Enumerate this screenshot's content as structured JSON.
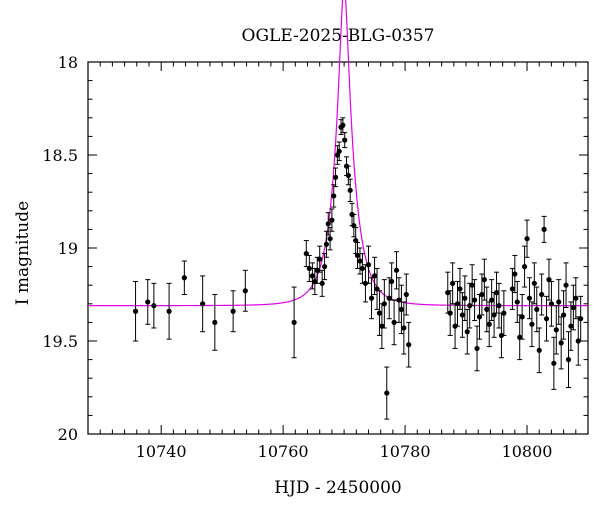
{
  "chart_data": {
    "type": "scatter",
    "title": "OGLE-2025-BLG-0357",
    "xlabel": "HJD - 2450000",
    "ylabel": "I magnitude",
    "xlim": [
      10728,
      10810
    ],
    "ylim": [
      18,
      20
    ],
    "y_inverted": true,
    "x_ticks": [
      10740,
      10760,
      10780,
      10800
    ],
    "y_ticks": [
      18,
      18.5,
      19,
      19.5,
      20
    ],
    "grid": false,
    "legend": "none",
    "colors": {
      "points": "#000000",
      "model": "#e600e6"
    },
    "model": {
      "type": "point-lens microlensing",
      "t0": 10770.0,
      "tE": 3.2,
      "u0": 0.21,
      "baseline": 19.31,
      "blend_fraction": 1.0
    },
    "points": [
      {
        "x": 10735.8,
        "y": 19.34,
        "err": 0.16
      },
      {
        "x": 10737.8,
        "y": 19.29,
        "err": 0.12
      },
      {
        "x": 10738.8,
        "y": 19.31,
        "err": 0.12
      },
      {
        "x": 10741.3,
        "y": 19.34,
        "err": 0.15
      },
      {
        "x": 10743.8,
        "y": 19.16,
        "err": 0.09
      },
      {
        "x": 10746.8,
        "y": 19.3,
        "err": 0.15
      },
      {
        "x": 10748.8,
        "y": 19.4,
        "err": 0.15
      },
      {
        "x": 10751.8,
        "y": 19.34,
        "err": 0.11
      },
      {
        "x": 10753.8,
        "y": 19.23,
        "err": 0.11
      },
      {
        "x": 10761.8,
        "y": 19.4,
        "err": 0.19
      },
      {
        "x": 10763.8,
        "y": 19.03,
        "err": 0.07
      },
      {
        "x": 10764.3,
        "y": 19.11,
        "err": 0.07
      },
      {
        "x": 10764.8,
        "y": 19.15,
        "err": 0.07
      },
      {
        "x": 10765.2,
        "y": 19.18,
        "err": 0.07
      },
      {
        "x": 10765.6,
        "y": 19.12,
        "err": 0.07
      },
      {
        "x": 10766.0,
        "y": 19.06,
        "err": 0.07
      },
      {
        "x": 10766.4,
        "y": 19.19,
        "err": 0.07
      },
      {
        "x": 10766.8,
        "y": 19.1,
        "err": 0.07
      },
      {
        "x": 10767.1,
        "y": 18.98,
        "err": 0.07
      },
      {
        "x": 10767.4,
        "y": 18.87,
        "err": 0.06
      },
      {
        "x": 10767.7,
        "y": 18.95,
        "err": 0.06
      },
      {
        "x": 10768.0,
        "y": 18.85,
        "err": 0.06
      },
      {
        "x": 10768.3,
        "y": 18.72,
        "err": 0.06
      },
      {
        "x": 10768.6,
        "y": 18.62,
        "err": 0.05
      },
      {
        "x": 10768.9,
        "y": 18.5,
        "err": 0.05
      },
      {
        "x": 10769.2,
        "y": 18.48,
        "err": 0.05
      },
      {
        "x": 10769.5,
        "y": 18.35,
        "err": 0.04
      },
      {
        "x": 10769.8,
        "y": 18.34,
        "err": 0.04
      },
      {
        "x": 10770.1,
        "y": 18.42,
        "err": 0.04
      },
      {
        "x": 10770.4,
        "y": 18.56,
        "err": 0.05
      },
      {
        "x": 10770.7,
        "y": 18.61,
        "err": 0.05
      },
      {
        "x": 10771.0,
        "y": 18.69,
        "err": 0.06
      },
      {
        "x": 10771.3,
        "y": 18.82,
        "err": 0.06
      },
      {
        "x": 10771.6,
        "y": 18.88,
        "err": 0.06
      },
      {
        "x": 10771.9,
        "y": 18.96,
        "err": 0.07
      },
      {
        "x": 10772.2,
        "y": 19.04,
        "err": 0.07
      },
      {
        "x": 10772.6,
        "y": 19.07,
        "err": 0.07
      },
      {
        "x": 10773.0,
        "y": 19.11,
        "err": 0.08
      },
      {
        "x": 10773.5,
        "y": 19.19,
        "err": 0.1
      },
      {
        "x": 10774.0,
        "y": 19.09,
        "err": 0.1
      },
      {
        "x": 10774.5,
        "y": 19.27,
        "err": 0.11
      },
      {
        "x": 10775.0,
        "y": 19.15,
        "err": 0.1
      },
      {
        "x": 10775.4,
        "y": 19.22,
        "err": 0.11
      },
      {
        "x": 10775.8,
        "y": 19.35,
        "err": 0.12
      },
      {
        "x": 10776.2,
        "y": 19.42,
        "err": 0.12
      },
      {
        "x": 10776.6,
        "y": 19.3,
        "err": 0.13
      },
      {
        "x": 10777.0,
        "y": 19.78,
        "err": 0.14
      },
      {
        "x": 10777.4,
        "y": 19.27,
        "err": 0.11
      },
      {
        "x": 10777.8,
        "y": 19.18,
        "err": 0.1
      },
      {
        "x": 10778.2,
        "y": 19.4,
        "err": 0.12
      },
      {
        "x": 10778.6,
        "y": 19.12,
        "err": 0.1
      },
      {
        "x": 10779.0,
        "y": 19.28,
        "err": 0.12
      },
      {
        "x": 10779.4,
        "y": 19.33,
        "err": 0.13
      },
      {
        "x": 10779.8,
        "y": 19.43,
        "err": 0.14
      },
      {
        "x": 10780.2,
        "y": 19.25,
        "err": 0.11
      },
      {
        "x": 10780.6,
        "y": 19.52,
        "err": 0.12
      },
      {
        "x": 10787.0,
        "y": 19.24,
        "err": 0.11
      },
      {
        "x": 10787.4,
        "y": 19.35,
        "err": 0.12
      },
      {
        "x": 10787.8,
        "y": 19.19,
        "err": 0.11
      },
      {
        "x": 10788.2,
        "y": 19.42,
        "err": 0.12
      },
      {
        "x": 10788.6,
        "y": 19.3,
        "err": 0.12
      },
      {
        "x": 10789.0,
        "y": 19.22,
        "err": 0.11
      },
      {
        "x": 10789.4,
        "y": 19.36,
        "err": 0.12
      },
      {
        "x": 10789.8,
        "y": 19.27,
        "err": 0.12
      },
      {
        "x": 10790.2,
        "y": 19.45,
        "err": 0.12
      },
      {
        "x": 10790.6,
        "y": 19.31,
        "err": 0.12
      },
      {
        "x": 10791.0,
        "y": 19.2,
        "err": 0.11
      },
      {
        "x": 10791.4,
        "y": 19.28,
        "err": 0.11
      },
      {
        "x": 10791.8,
        "y": 19.54,
        "err": 0.12
      },
      {
        "x": 10792.2,
        "y": 19.37,
        "err": 0.12
      },
      {
        "x": 10792.6,
        "y": 19.25,
        "err": 0.11
      },
      {
        "x": 10793.0,
        "y": 19.17,
        "err": 0.11
      },
      {
        "x": 10793.4,
        "y": 19.33,
        "err": 0.12
      },
      {
        "x": 10793.8,
        "y": 19.41,
        "err": 0.12
      },
      {
        "x": 10794.2,
        "y": 19.28,
        "err": 0.11
      },
      {
        "x": 10794.6,
        "y": 19.36,
        "err": 0.12
      },
      {
        "x": 10795.0,
        "y": 19.24,
        "err": 0.11
      },
      {
        "x": 10795.4,
        "y": 19.31,
        "err": 0.12
      },
      {
        "x": 10795.8,
        "y": 19.47,
        "err": 0.12
      },
      {
        "x": 10796.2,
        "y": 19.35,
        "err": 0.12
      },
      {
        "x": 10797.6,
        "y": 19.22,
        "err": 0.11
      },
      {
        "x": 10798.0,
        "y": 19.14,
        "err": 0.1
      },
      {
        "x": 10798.4,
        "y": 19.29,
        "err": 0.11
      },
      {
        "x": 10798.8,
        "y": 19.48,
        "err": 0.12
      },
      {
        "x": 10799.2,
        "y": 19.37,
        "err": 0.12
      },
      {
        "x": 10799.6,
        "y": 19.1,
        "err": 0.11
      },
      {
        "x": 10800.0,
        "y": 18.95,
        "err": 0.1
      },
      {
        "x": 10800.4,
        "y": 19.27,
        "err": 0.11
      },
      {
        "x": 10800.8,
        "y": 19.41,
        "err": 0.12
      },
      {
        "x": 10801.2,
        "y": 19.19,
        "err": 0.11
      },
      {
        "x": 10801.6,
        "y": 19.33,
        "err": 0.12
      },
      {
        "x": 10802.0,
        "y": 19.55,
        "err": 0.12
      },
      {
        "x": 10802.4,
        "y": 19.25,
        "err": 0.11
      },
      {
        "x": 10802.8,
        "y": 18.9,
        "err": 0.07
      },
      {
        "x": 10803.2,
        "y": 19.38,
        "err": 0.12
      },
      {
        "x": 10803.6,
        "y": 19.17,
        "err": 0.11
      },
      {
        "x": 10804.0,
        "y": 19.3,
        "err": 0.12
      },
      {
        "x": 10804.4,
        "y": 19.62,
        "err": 0.14
      },
      {
        "x": 10804.8,
        "y": 19.44,
        "err": 0.13
      },
      {
        "x": 10805.2,
        "y": 19.29,
        "err": 0.12
      },
      {
        "x": 10805.6,
        "y": 19.51,
        "err": 0.14
      },
      {
        "x": 10806.0,
        "y": 19.36,
        "err": 0.13
      },
      {
        "x": 10806.4,
        "y": 19.2,
        "err": 0.12
      },
      {
        "x": 10806.8,
        "y": 19.6,
        "err": 0.15
      },
      {
        "x": 10807.2,
        "y": 19.42,
        "err": 0.13
      },
      {
        "x": 10807.6,
        "y": 19.32,
        "err": 0.12
      },
      {
        "x": 10808.0,
        "y": 19.27,
        "err": 0.11
      },
      {
        "x": 10808.4,
        "y": 19.5,
        "err": 0.13
      },
      {
        "x": 10808.8,
        "y": 19.38,
        "err": 0.12
      }
    ]
  }
}
